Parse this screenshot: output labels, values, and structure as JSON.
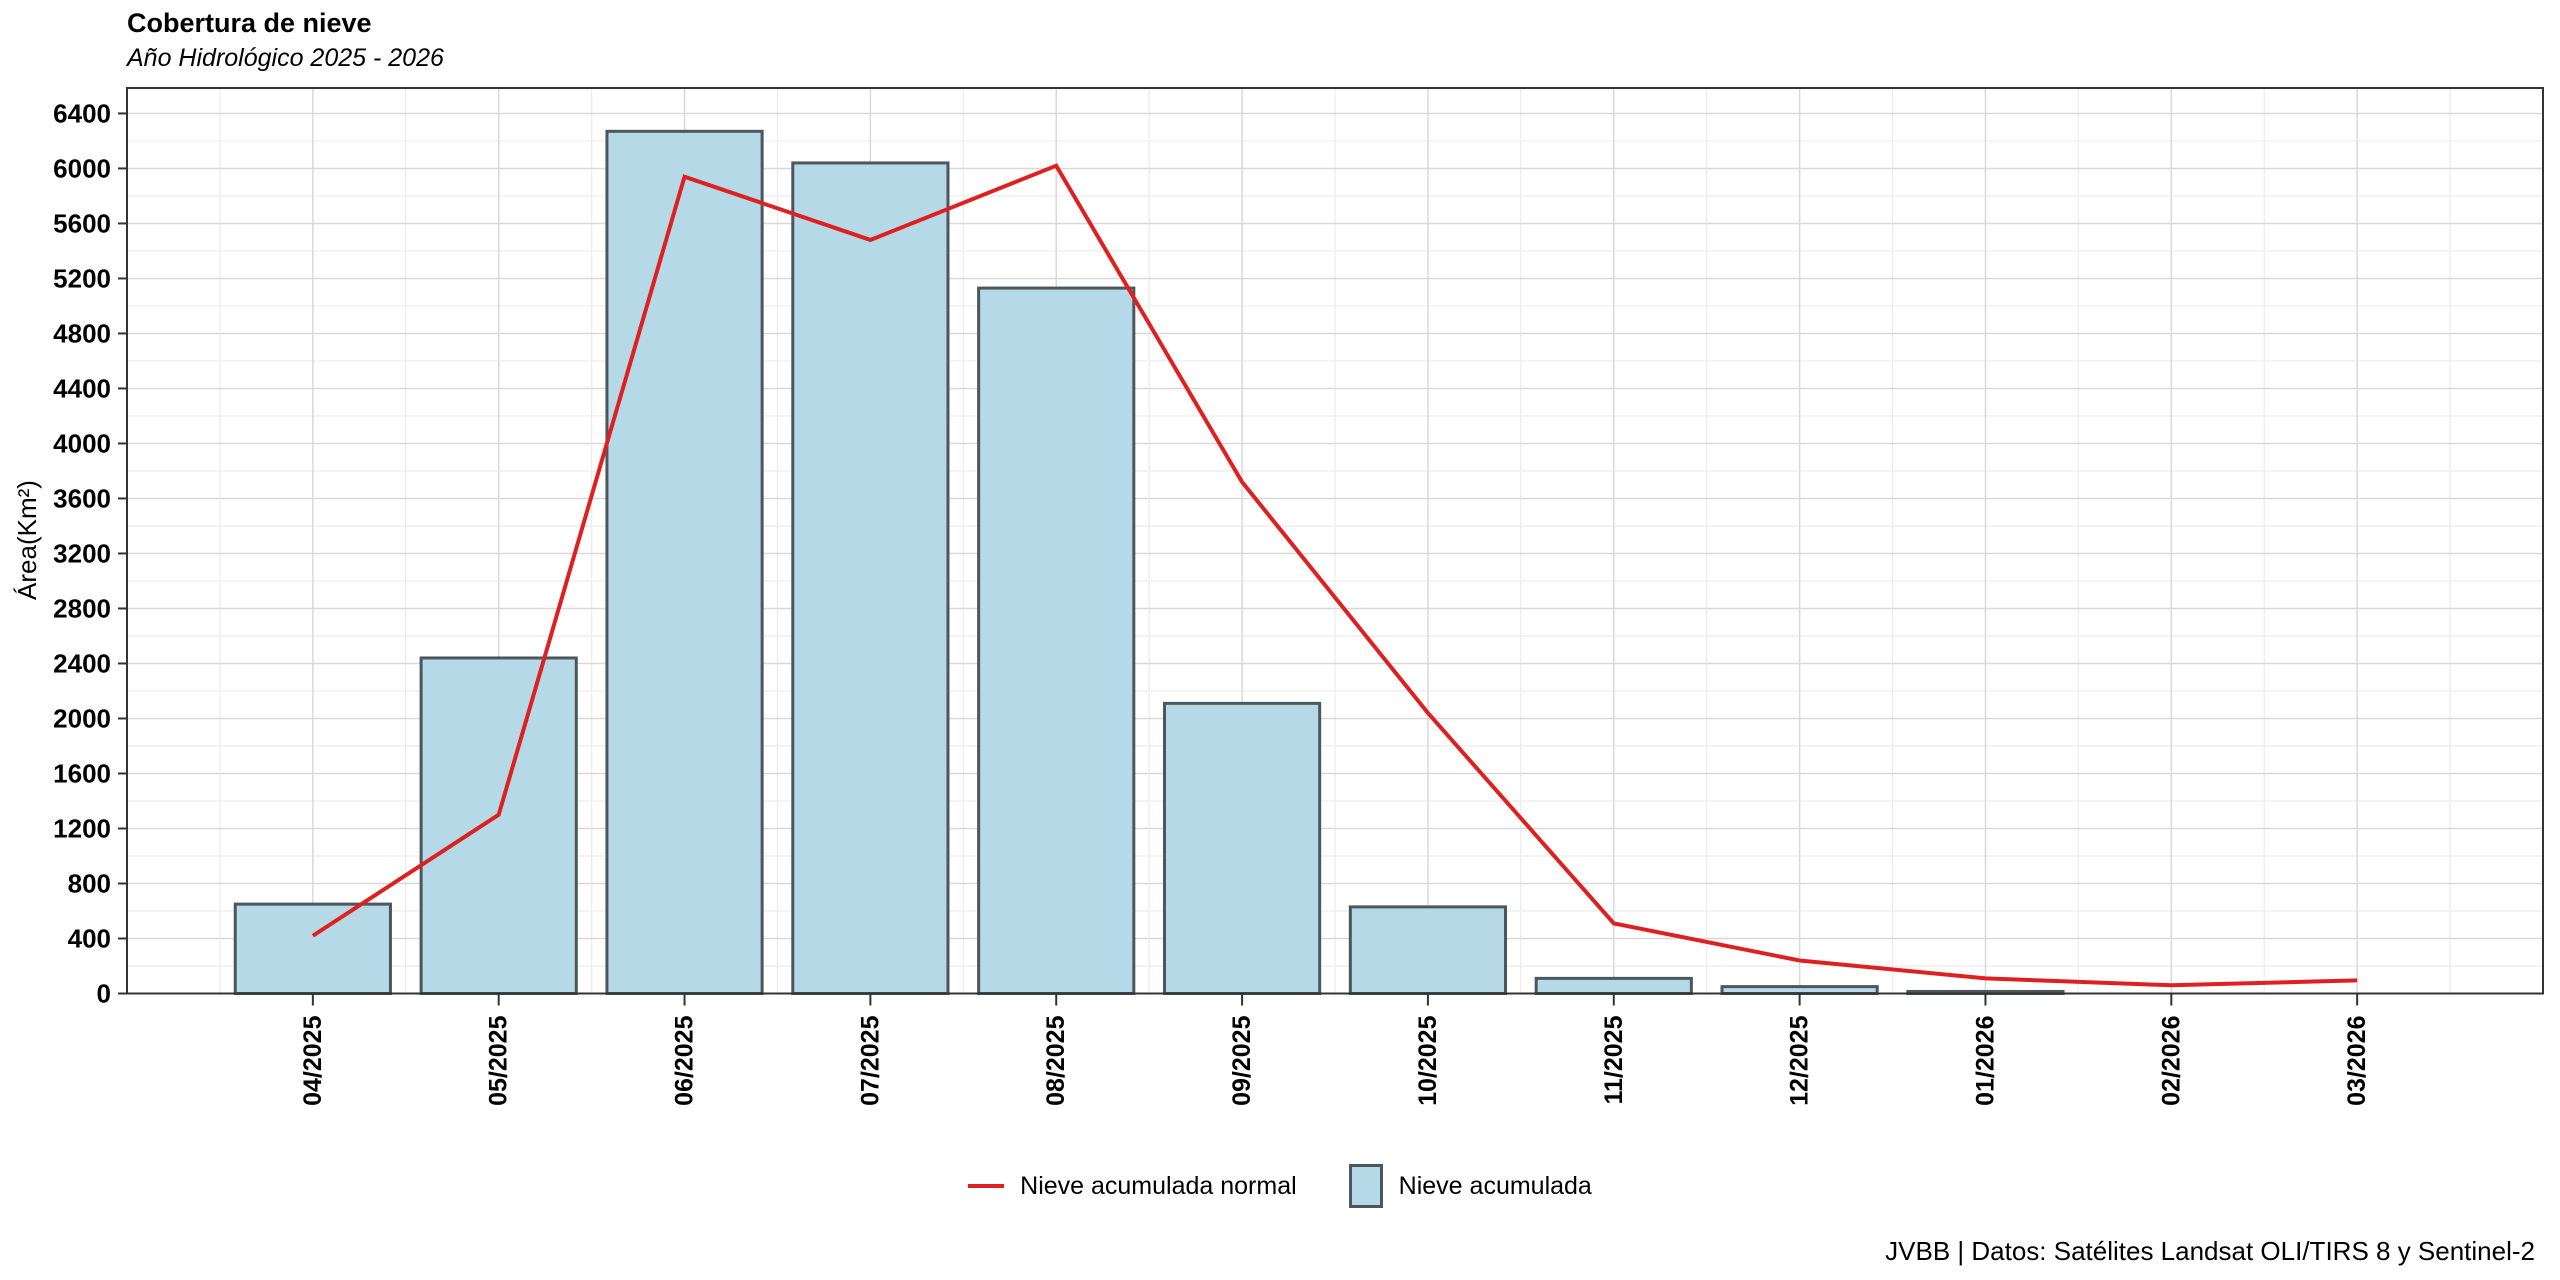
{
  "header": {
    "title": "Cobertura de nieve",
    "subtitle": "Año Hidrológico 2025 - 2026"
  },
  "caption": "JVBB | Datos: Satélites Landsat OLI/TIRS 8 y Sentinel-2",
  "legend": {
    "line_label": "Nieve acumulada normal",
    "bar_label": "Nieve acumulada"
  },
  "colors": {
    "bar_fill": "#b5d9e6",
    "bar_border": "#4d565c",
    "line": "#de2120",
    "grid_major": "#d9d9d9",
    "grid_minor": "#ececec",
    "panel_border": "#333333",
    "tick": "#333333",
    "text": "#000000"
  },
  "chart_data": {
    "type": "bar",
    "title": "Cobertura de nieve",
    "subtitle": "Año Hidrológico 2025 - 2026",
    "xlabel": "",
    "ylabel": "Área(Km²)",
    "categories": [
      "04/2025",
      "05/2025",
      "06/2025",
      "07/2025",
      "08/2025",
      "09/2025",
      "10/2025",
      "11/2025",
      "12/2025",
      "01/2026",
      "02/2026",
      "03/2026"
    ],
    "series": [
      {
        "name": "Nieve acumulada",
        "type": "bar",
        "values": [
          650,
          2440,
          6270,
          6040,
          5130,
          2110,
          630,
          110,
          50,
          15,
          0,
          0
        ]
      },
      {
        "name": "Nieve acumulada normal",
        "type": "line",
        "values": [
          420,
          1300,
          5940,
          5480,
          6020,
          3720,
          2040,
          510,
          240,
          110,
          60,
          95
        ]
      }
    ],
    "ylim": [
      0,
      6585
    ],
    "ytick_step": 400,
    "ytick_max": 6400,
    "grid": true,
    "minor_grid": true,
    "legend_position": "bottom"
  }
}
